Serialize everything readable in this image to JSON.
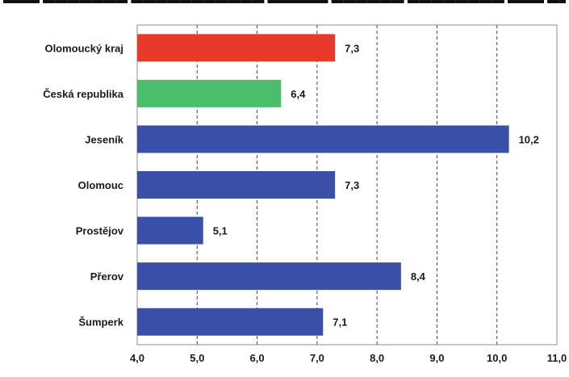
{
  "chart_data": {
    "type": "bar",
    "orientation": "horizontal",
    "title": "",
    "xlabel": "",
    "ylabel": "",
    "categories": [
      "Olomoucký kraj",
      "Česká republika",
      "Jeseník",
      "Olomouc",
      "Prostějov",
      "Přerov",
      "Šumperk"
    ],
    "values": [
      7.3,
      6.4,
      10.2,
      7.3,
      5.1,
      8.4,
      7.1
    ],
    "value_labels": [
      "7,3",
      "6,4",
      "10,2",
      "7,3",
      "5,1",
      "8,4",
      "7,1"
    ],
    "bar_colors": [
      "#e8392a",
      "#4cbd6a",
      "#3a4fa8",
      "#3a4fa8",
      "#3a4fa8",
      "#3a4fa8",
      "#3a4fa8"
    ],
    "xlim": [
      4.0,
      11.0
    ],
    "x_ticks": [
      4.0,
      5.0,
      6.0,
      7.0,
      8.0,
      9.0,
      10.0,
      11.0
    ],
    "x_tick_labels": [
      "4,0",
      "5,0",
      "6,0",
      "7,0",
      "8,0",
      "9,0",
      "10,0",
      "11,0"
    ],
    "grid": "vertical dashed",
    "legend": "none"
  }
}
